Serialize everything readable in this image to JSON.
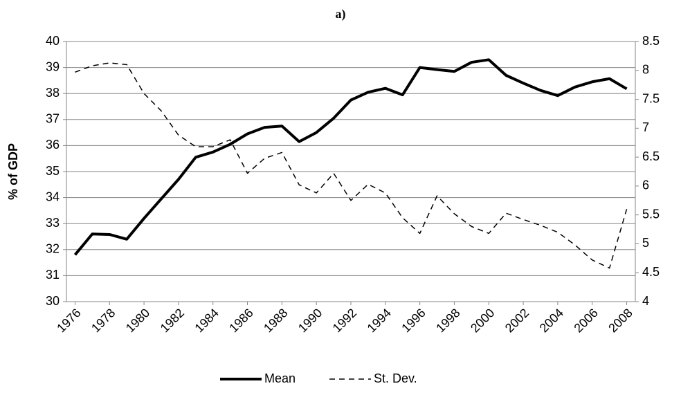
{
  "chart_data": {
    "type": "line",
    "title": "a)",
    "y_label": "% of GDP",
    "x": [
      1976,
      1977,
      1978,
      1979,
      1980,
      1981,
      1982,
      1983,
      1984,
      1985,
      1986,
      1987,
      1988,
      1989,
      1990,
      1991,
      1992,
      1993,
      1994,
      1995,
      1996,
      1997,
      1998,
      1999,
      2000,
      2001,
      2002,
      2003,
      2004,
      2005,
      2006,
      2007,
      2008
    ],
    "xlim": [
      1975.5,
      2008.5
    ],
    "xticks": [
      1976,
      1978,
      1980,
      1982,
      1984,
      1986,
      1988,
      1990,
      1992,
      1994,
      1996,
      1998,
      2000,
      2002,
      2004,
      2006,
      2008
    ],
    "ylim": [
      30,
      40
    ],
    "yticks": [
      30,
      31,
      32,
      33,
      34,
      35,
      36,
      37,
      38,
      39,
      40
    ],
    "y2lim": [
      4,
      8.5
    ],
    "y2ticks": [
      4,
      4.5,
      5,
      5.5,
      6,
      6.5,
      7,
      7.5,
      8,
      8.5
    ],
    "grid": true,
    "legend": "bottom",
    "series": [
      {
        "name": "Mean",
        "color": "#000000",
        "dash": "solid",
        "values": [
          31.8,
          32.6,
          32.58,
          32.4,
          33.2,
          33.95,
          34.7,
          35.55,
          35.75,
          36.05,
          36.45,
          36.7,
          36.75,
          36.15,
          36.5,
          37.05,
          37.75,
          38.05,
          38.2,
          37.95,
          39.0,
          38.92,
          38.85,
          39.2,
          39.3,
          38.7,
          38.4,
          38.12,
          37.92,
          38.25,
          38.45,
          38.57,
          38.18
        ]
      },
      {
        "name": "St. Dev.",
        "color": "#000000",
        "dash": "dashed",
        "axis": "y2",
        "values": [
          7.97,
          8.08,
          8.13,
          8.1,
          7.6,
          7.3,
          6.88,
          6.68,
          6.68,
          6.8,
          6.22,
          6.48,
          6.58,
          6.02,
          5.88,
          6.22,
          5.75,
          6.03,
          5.88,
          5.45,
          5.18,
          5.83,
          5.52,
          5.3,
          5.18,
          5.53,
          5.42,
          5.32,
          5.2,
          4.98,
          4.72,
          4.58,
          5.6
        ]
      }
    ]
  }
}
